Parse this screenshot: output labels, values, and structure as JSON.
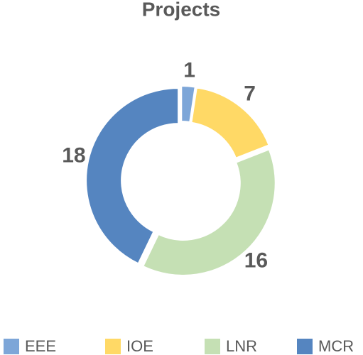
{
  "chart_data": {
    "type": "donut",
    "title": "Projects",
    "categories": [
      "EEE",
      "IOE",
      "LNR",
      "MCR"
    ],
    "values": [
      1,
      7,
      16,
      18
    ],
    "colors": [
      "#7da6d8",
      "#ffd966",
      "#c5e0b4",
      "#5585c0"
    ],
    "legend": "bottom"
  }
}
